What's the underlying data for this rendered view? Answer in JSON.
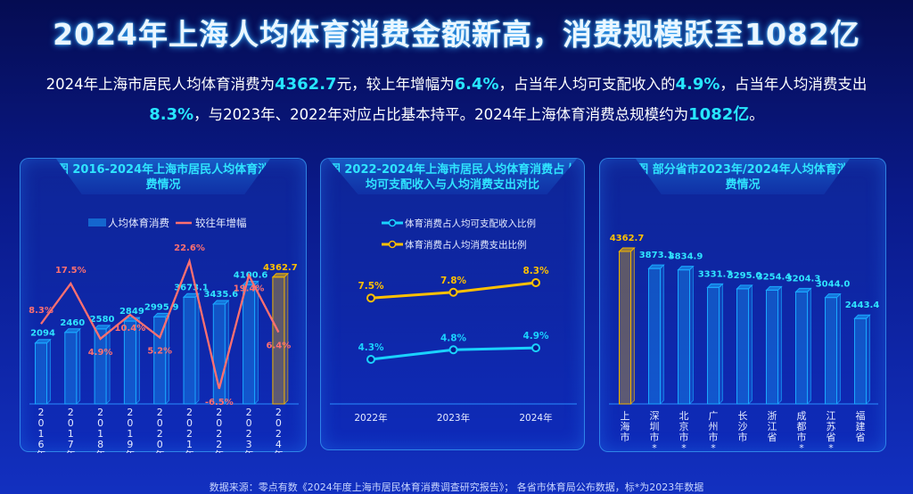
{
  "title": "2024年上海人均体育消费金额新高，消费规模跃至1082亿",
  "summary": {
    "s1": "2024年上海市居民人均体育消费为",
    "v1": "4362.7",
    "s2": "元，较上年增幅为",
    "v2": "6.4%",
    "s3": "，占当年人均可支配收入的",
    "v3": "4.9%",
    "s4": "，占当年人均消费支出",
    "v4": "8.3%",
    "s5": "，与2023年、2022年对应占比基本持平。2024年上海体育消费总规模约为",
    "v5": "1082亿",
    "s6": "。"
  },
  "source": "数据来源：零点有数《2024年度上海市居民体育消费调查研究报告》；  各省市体育局公布数据，标*为2023年数据",
  "chart_data": [
    {
      "type": "bar+line",
      "title": "图 2016-2024年上海市居民人均体育消费情况",
      "categories": [
        "2016年",
        "2017年",
        "2018年",
        "2019年",
        "2020年",
        "2021年",
        "2022年",
        "2023年",
        "2024年"
      ],
      "series": [
        {
          "name": "人均体育消费",
          "type": "bar",
          "values": [
            2094,
            2460,
            2580,
            2849,
            2995.9,
            3673.1,
            3435.6,
            4100.6,
            4362.7
          ],
          "labels": [
            "2094",
            "2460",
            "2580",
            "2849",
            "2995.9",
            "3673.1",
            "3435.6",
            "4100.6",
            "4362.7"
          ],
          "color": "#1aa8ff",
          "highlight_color": "#f0b400"
        },
        {
          "name": "较往年增幅",
          "type": "line",
          "values": [
            8.3,
            17.5,
            4.9,
            10.4,
            5.2,
            22.6,
            -6.5,
            19.4,
            6.4
          ],
          "labels": [
            "8.3%",
            "17.5%",
            "4.9%",
            "10.4%",
            "5.2%",
            "22.6%",
            "-6.5%",
            "19.4%",
            "6.4%"
          ],
          "color": "#ff7070"
        }
      ],
      "legend": "top"
    },
    {
      "type": "line",
      "title": "图 2022-2024年上海市居民人均体育消费占人均可支配收入与人均消费支出对比",
      "categories": [
        "2022年",
        "2023年",
        "2024年"
      ],
      "series": [
        {
          "name": "体育消费占人均可支配收入比例",
          "values": [
            4.3,
            4.8,
            4.9
          ],
          "labels": [
            "4.3%",
            "4.8%",
            "4.9%"
          ],
          "color": "#1ad2ff"
        },
        {
          "name": "体育消费占人均消费支出比例",
          "values": [
            7.5,
            7.8,
            8.3
          ],
          "labels": [
            "7.5%",
            "7.8%",
            "8.3%"
          ],
          "color": "#ffc000"
        }
      ],
      "legend": "top"
    },
    {
      "type": "bar",
      "title": "图 部分省市2023年/2024年人均体育消费情况",
      "categories": [
        "上海市",
        "深圳市*",
        "北京市*",
        "广州市*",
        "长沙市",
        "浙江省",
        "成都市*",
        "江苏省*",
        "福建省"
      ],
      "values": [
        4362.7,
        3873.1,
        3834.9,
        3331.7,
        3295.0,
        3254.4,
        3204.3,
        3044.0,
        2443.4
      ],
      "labels": [
        "4362.7",
        "3873.1",
        "3834.9",
        "3331.7",
        "3295.0",
        "3254.4",
        "3204.3",
        "3044.0",
        "2443.4"
      ],
      "color": "#1aa8ff",
      "highlight_color": "#f0b400"
    }
  ]
}
